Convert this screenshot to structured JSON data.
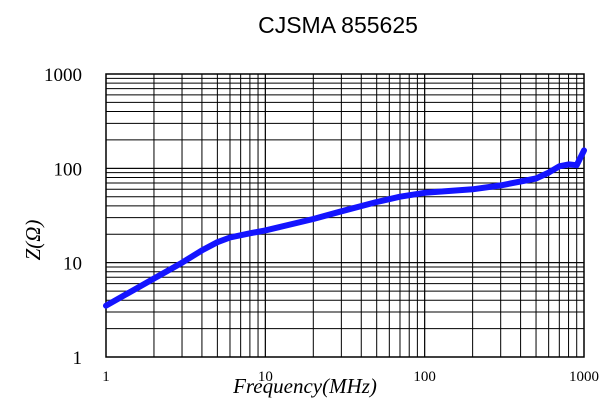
{
  "chart_data": {
    "type": "line",
    "title": "CJSMA 855625",
    "xlabel": "Frequency(MHz)",
    "ylabel": "Z(Ω)",
    "xscale": "log",
    "yscale": "log",
    "xlim": [
      1,
      1000
    ],
    "ylim": [
      1,
      1000
    ],
    "xticks": [
      "1",
      "10",
      "100",
      "1000"
    ],
    "yticks": [
      "1",
      "10",
      "100",
      "1000"
    ],
    "grid": true,
    "series": [
      {
        "color": "#1414ff",
        "x": [
          1,
          2,
          3,
          4,
          5,
          6,
          8,
          10,
          20,
          30,
          50,
          70,
          100,
          200,
          300,
          500,
          600,
          700,
          800,
          900,
          1000
        ],
        "y": [
          3.5,
          6.8,
          10,
          13.5,
          16.5,
          18.5,
          20.5,
          22,
          29,
          35,
          44,
          50,
          55,
          60,
          66,
          78,
          90,
          105,
          110,
          108,
          155
        ]
      }
    ]
  }
}
